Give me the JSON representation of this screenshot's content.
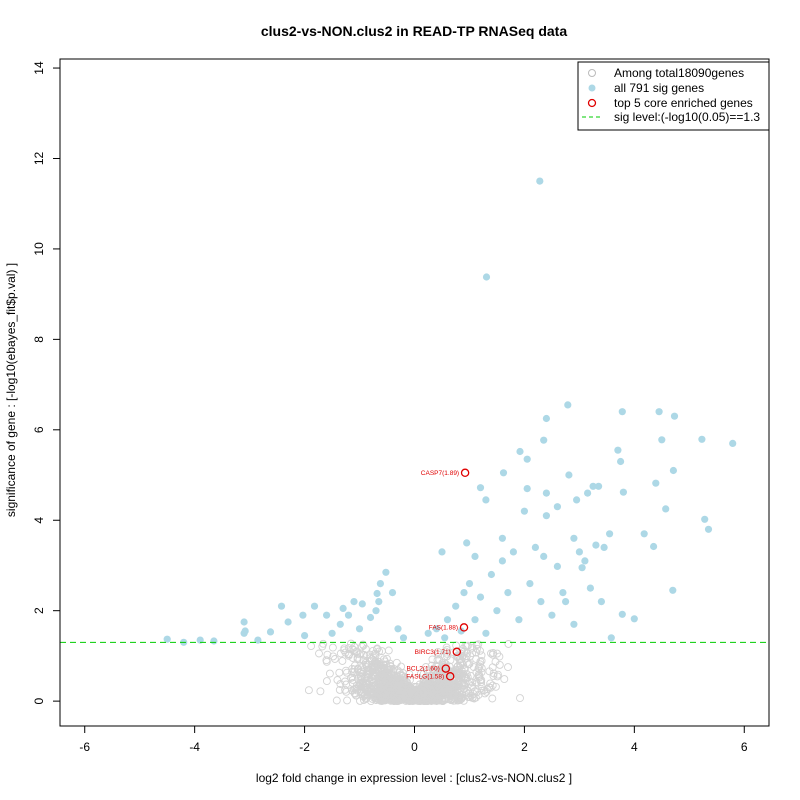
{
  "chart_data": {
    "type": "scatter",
    "title": "clus2-vs-NON.clus2 in READ-TP RNASeq data",
    "xlabel": "log2 fold change in expression level : [clus2-vs-NON.clus2 ]",
    "ylabel": "significance of gene : [-log10(ebayes_fit$p.val) ]",
    "xlim": [
      -6.45,
      6.45
    ],
    "ylim": [
      -0.55,
      14.2
    ],
    "xticks": [
      -6,
      -4,
      -2,
      0,
      2,
      4,
      6
    ],
    "yticks": [
      0,
      2,
      4,
      6,
      8,
      10,
      12,
      14
    ],
    "threshold": 1.3,
    "colors": {
      "background_genes": "#d3d3d3",
      "sig_genes": "#add8e6",
      "core_genes": "#e00000",
      "threshold_line": "#00cc00"
    },
    "legend": {
      "position": "top-right",
      "entries": [
        {
          "label": "Among total18090genes",
          "marker": "open-circle-grey"
        },
        {
          "label": "all 791 sig genes",
          "marker": "filled-circle-lightblue"
        },
        {
          "label": "top 5 core enriched genes",
          "marker": "open-circle-red"
        },
        {
          "label": "sig level:(-log10(0.05)==1.3",
          "marker": "dashed-line-green"
        }
      ]
    },
    "core_genes": [
      {
        "label": "CASP7(1.89)",
        "x": 0.92,
        "y": 5.05
      },
      {
        "label": "FAS(1.88)",
        "x": 0.9,
        "y": 1.63
      },
      {
        "label": "BIRC3(1.71)",
        "x": 0.77,
        "y": 1.09
      },
      {
        "label": "BCL2(1.60)",
        "x": 0.57,
        "y": 0.72
      },
      {
        "label": "FASLG(1.58)",
        "x": 0.65,
        "y": 0.55
      }
    ],
    "sig_genes": [
      [
        2.28,
        11.5
      ],
      [
        1.31,
        9.38
      ],
      [
        2.79,
        6.55
      ],
      [
        4.45,
        6.4
      ],
      [
        3.78,
        6.4
      ],
      [
        4.73,
        6.3
      ],
      [
        2.4,
        6.25
      ],
      [
        5.79,
        5.7
      ],
      [
        5.23,
        5.79
      ],
      [
        4.5,
        5.78
      ],
      [
        2.35,
        5.77
      ],
      [
        3.7,
        5.55
      ],
      [
        1.92,
        5.52
      ],
      [
        3.75,
        5.3
      ],
      [
        2.05,
        5.35
      ],
      [
        4.71,
        5.1
      ],
      [
        1.62,
        5.05
      ],
      [
        2.81,
        5.0
      ],
      [
        4.39,
        4.82
      ],
      [
        3.35,
        4.75
      ],
      [
        3.25,
        4.75
      ],
      [
        1.2,
        4.72
      ],
      [
        2.05,
        4.7
      ],
      [
        3.8,
        4.62
      ],
      [
        1.3,
        4.45
      ],
      [
        3.15,
        4.6
      ],
      [
        2.4,
        4.6
      ],
      [
        2.95,
        4.45
      ],
      [
        4.57,
        4.25
      ],
      [
        2.6,
        4.3
      ],
      [
        2.0,
        4.2
      ],
      [
        2.4,
        4.1
      ],
      [
        5.28,
        4.02
      ],
      [
        5.35,
        3.8
      ],
      [
        4.18,
        3.7
      ],
      [
        3.55,
        3.7
      ],
      [
        4.35,
        3.42
      ],
      [
        3.45,
        3.4
      ],
      [
        3.3,
        3.45
      ],
      [
        3.0,
        3.3
      ],
      [
        2.9,
        3.6
      ],
      [
        1.6,
        3.6
      ],
      [
        1.8,
        3.3
      ],
      [
        1.1,
        3.2
      ],
      [
        0.95,
        3.5
      ],
      [
        3.1,
        3.1
      ],
      [
        2.35,
        3.2
      ],
      [
        2.6,
        2.98
      ],
      [
        3.05,
        2.95
      ],
      [
        4.7,
        2.45
      ],
      [
        3.78,
        1.92
      ],
      [
        4.0,
        1.82
      ],
      [
        3.58,
        1.4
      ],
      [
        0.5,
        3.3
      ],
      [
        -0.52,
        2.85
      ],
      [
        -0.62,
        2.6
      ],
      [
        -0.68,
        2.38
      ],
      [
        -0.65,
        2.2
      ],
      [
        -0.7,
        2.0
      ],
      [
        -0.95,
        2.15
      ],
      [
        -1.1,
        2.2
      ],
      [
        -1.2,
        1.9
      ],
      [
        -1.35,
        1.7
      ],
      [
        -1.6,
        1.9
      ],
      [
        -1.82,
        2.1
      ],
      [
        -2.03,
        1.9
      ],
      [
        -2.42,
        2.1
      ],
      [
        -2.3,
        1.75
      ],
      [
        -2.62,
        1.53
      ],
      [
        -3.1,
        1.75
      ],
      [
        -3.08,
        1.55
      ],
      [
        -3.1,
        1.5
      ],
      [
        -3.9,
        1.35
      ],
      [
        -4.5,
        1.37
      ],
      [
        -3.65,
        1.33
      ],
      [
        -4.2,
        1.3
      ],
      [
        -2.85,
        1.35
      ],
      [
        -2.0,
        1.45
      ],
      [
        -1.5,
        1.5
      ],
      [
        -1.0,
        1.6
      ],
      [
        -1.3,
        2.05
      ],
      [
        -0.8,
        1.85
      ],
      [
        -0.4,
        2.4
      ],
      [
        -0.3,
        1.6
      ],
      [
        -0.2,
        1.4
      ],
      [
        0.25,
        1.5
      ],
      [
        0.4,
        1.6
      ],
      [
        0.6,
        1.8
      ],
      [
        0.75,
        2.1
      ],
      [
        1.0,
        2.6
      ],
      [
        1.2,
        2.3
      ],
      [
        1.4,
        2.8
      ],
      [
        1.5,
        2.0
      ],
      [
        1.7,
        2.4
      ],
      [
        1.9,
        1.8
      ],
      [
        2.1,
        2.6
      ],
      [
        2.3,
        2.2
      ],
      [
        2.5,
        1.9
      ],
      [
        2.7,
        2.4
      ],
      [
        2.9,
        1.7
      ],
      [
        3.2,
        2.5
      ],
      [
        3.4,
        2.2
      ],
      [
        1.3,
        1.5
      ],
      [
        1.1,
        1.8
      ],
      [
        0.9,
        2.4
      ],
      [
        1.6,
        3.1
      ],
      [
        2.2,
        3.4
      ],
      [
        2.75,
        2.2
      ],
      [
        0.55,
        1.4
      ],
      [
        0.85,
        1.55
      ]
    ]
  }
}
